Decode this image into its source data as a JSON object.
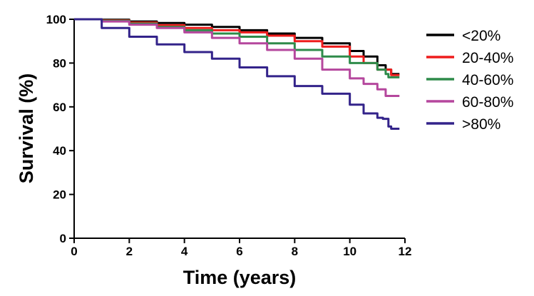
{
  "chart_data": {
    "type": "line",
    "title": "",
    "xlabel": "Time (years)",
    "ylabel": "Survival (%)",
    "xlim": [
      0,
      12
    ],
    "ylim": [
      0,
      100
    ],
    "xticks": [
      "0",
      "2",
      "4",
      "6",
      "8",
      "10",
      "12"
    ],
    "yticks": [
      "0",
      "20",
      "40",
      "60",
      "80",
      "100"
    ],
    "grid": false,
    "legend_position": "right",
    "series": [
      {
        "name": "<20%",
        "color": "#000000",
        "points": [
          [
            0,
            100
          ],
          [
            1,
            99.8
          ],
          [
            2,
            99
          ],
          [
            3,
            98.3
          ],
          [
            4,
            97.5
          ],
          [
            5,
            96.5
          ],
          [
            6,
            95
          ],
          [
            7,
            93.5
          ],
          [
            8,
            91.5
          ],
          [
            9,
            89
          ],
          [
            10,
            85.5
          ],
          [
            10.5,
            83
          ],
          [
            11,
            79
          ],
          [
            11.3,
            77
          ],
          [
            11.5,
            75
          ],
          [
            11.8,
            75
          ]
        ]
      },
      {
        "name": "20-40%",
        "color": "#ee1c1c",
        "points": [
          [
            0,
            100
          ],
          [
            1,
            99.5
          ],
          [
            2,
            98.5
          ],
          [
            3,
            97.3
          ],
          [
            4,
            96
          ],
          [
            5,
            95
          ],
          [
            6,
            94
          ],
          [
            7,
            92.5
          ],
          [
            8,
            90
          ],
          [
            9,
            87.5
          ],
          [
            10,
            83
          ],
          [
            10.5,
            80
          ],
          [
            11,
            77
          ],
          [
            11.5,
            74.5
          ],
          [
            11.8,
            74.5
          ]
        ]
      },
      {
        "name": "40-60%",
        "color": "#2e8b4a",
        "points": [
          [
            0,
            100
          ],
          [
            1,
            99.3
          ],
          [
            2,
            98
          ],
          [
            3,
            96.5
          ],
          [
            4,
            95
          ],
          [
            5,
            93.5
          ],
          [
            6,
            92
          ],
          [
            7,
            89
          ],
          [
            8,
            86
          ],
          [
            9,
            83
          ],
          [
            10,
            80
          ],
          [
            11,
            77
          ],
          [
            11.3,
            75
          ],
          [
            11.4,
            73.5
          ],
          [
            11.8,
            73.5
          ]
        ]
      },
      {
        "name": "60-80%",
        "color": "#b5479d",
        "points": [
          [
            0,
            100
          ],
          [
            1,
            99
          ],
          [
            2,
            97.5
          ],
          [
            3,
            96
          ],
          [
            4,
            94
          ],
          [
            5,
            91.5
          ],
          [
            6,
            89
          ],
          [
            7,
            86
          ],
          [
            8,
            82
          ],
          [
            9,
            77
          ],
          [
            10,
            73
          ],
          [
            10.5,
            70.5
          ],
          [
            11,
            68
          ],
          [
            11.3,
            65
          ],
          [
            11.8,
            65
          ]
        ]
      },
      {
        "name": ">80%",
        "color": "#33238a",
        "points": [
          [
            0,
            100
          ],
          [
            1,
            96
          ],
          [
            2,
            92
          ],
          [
            3,
            88.5
          ],
          [
            4,
            85
          ],
          [
            5,
            82
          ],
          [
            6,
            78
          ],
          [
            7,
            74
          ],
          [
            8,
            69.5
          ],
          [
            9,
            66
          ],
          [
            10,
            61
          ],
          [
            10.5,
            57
          ],
          [
            11,
            55
          ],
          [
            11.2,
            54.5
          ],
          [
            11.4,
            51
          ],
          [
            11.5,
            50
          ],
          [
            11.8,
            50
          ]
        ]
      }
    ]
  }
}
